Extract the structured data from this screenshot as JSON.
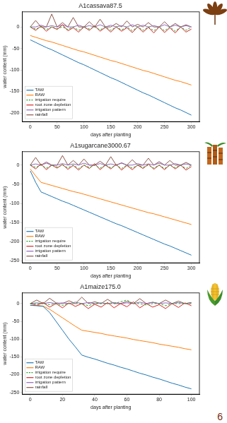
{
  "chart_data": [
    {
      "type": "line",
      "title": "A1cassava87.5",
      "x_label": "days after planting",
      "y_label": "water content (mm)",
      "x": [
        0,
        10,
        20,
        30,
        40,
        50,
        60,
        70,
        80,
        90,
        100,
        110,
        120,
        130,
        140,
        150,
        160,
        170,
        180,
        190,
        200,
        210,
        220,
        230,
        240,
        250,
        260,
        270,
        280,
        290,
        300
      ],
      "series": [
        {
          "name": "TAW",
          "color": "#1f77b4",
          "line_style": "solid",
          "values": [
            -30,
            -36,
            -42,
            -48,
            -53,
            -59,
            -65,
            -71,
            -77,
            -83,
            -88,
            -94,
            -100,
            -106,
            -112,
            -118,
            -123,
            -129,
            -135,
            -141,
            -147,
            -153,
            -158,
            -164,
            -170,
            -176,
            -182,
            -188,
            -193,
            -199,
            -205
          ]
        },
        {
          "name": "RAW",
          "color": "#ff7f0e",
          "line_style": "solid",
          "values": [
            -20,
            -24,
            -28,
            -32,
            -35,
            -39,
            -43,
            -47,
            -51,
            -55,
            -58,
            -62,
            -66,
            -70,
            -74,
            -78,
            -81,
            -85,
            -89,
            -93,
            -97,
            -101,
            -104,
            -108,
            -112,
            -116,
            -120,
            -124,
            -127,
            -131,
            -135
          ]
        },
        {
          "name": "irrigation require",
          "color": "#2ca02c",
          "line_style": "dashed",
          "values": [
            0,
            -5,
            0,
            -6,
            0,
            -4,
            0,
            -6,
            0,
            -8,
            0,
            -5,
            0,
            -7,
            0,
            -8,
            0,
            -7,
            0,
            -9,
            0,
            -8,
            0,
            -9,
            0,
            -9,
            0,
            -10,
            0,
            -8,
            0
          ]
        },
        {
          "name": "root zone depletion",
          "color": "#d62728",
          "line_style": "solid",
          "values": [
            0,
            -8,
            2,
            -10,
            0,
            -6,
            5,
            -9,
            -2,
            -12,
            0,
            -8,
            3,
            -10,
            -1,
            -12,
            0,
            -10,
            -2,
            -13,
            0,
            -12,
            -1,
            -14,
            0,
            -13,
            -2,
            -14,
            0,
            -12,
            -5
          ]
        },
        {
          "name": "irrigation pattern",
          "color": "#9467bd",
          "line_style": "solid",
          "values": [
            0,
            0,
            4,
            0,
            3,
            0,
            5,
            0,
            0,
            4,
            0,
            3,
            0,
            5,
            0,
            4,
            0,
            3,
            0,
            5,
            0,
            4,
            0,
            3,
            0,
            5,
            0,
            4,
            0,
            3,
            0
          ]
        },
        {
          "name": "rainfall",
          "color": "#8c564b",
          "line_style": "solid",
          "values": [
            0,
            15,
            0,
            0,
            30,
            0,
            10,
            0,
            22,
            0,
            0,
            12,
            0,
            18,
            0,
            0,
            8,
            0,
            14,
            0,
            6,
            0,
            10,
            0,
            0,
            12,
            0,
            8,
            0,
            5,
            0
          ]
        }
      ],
      "xlim": [
        -15,
        315
      ],
      "xticks": [
        0,
        50,
        100,
        150,
        200,
        250,
        300
      ],
      "ylim": [
        -220,
        35
      ],
      "yticks": [
        -200,
        -150,
        -100,
        -50,
        0
      ],
      "grid": false,
      "legend": "lower left"
    },
    {
      "type": "line",
      "title": "A1sugarcane3000.67",
      "x_label": "days after planting",
      "y_label": "water content (mm)",
      "x": [
        0,
        10,
        20,
        30,
        40,
        50,
        60,
        70,
        80,
        90,
        100,
        110,
        120,
        130,
        140,
        150,
        160,
        170,
        180,
        190,
        200,
        210,
        220,
        230,
        240,
        250,
        260,
        270,
        280,
        290,
        300
      ],
      "series": [
        {
          "name": "TAW",
          "color": "#1f77b4",
          "line_style": "solid",
          "values": [
            -15,
            -45,
            -70,
            -76,
            -82,
            -88,
            -94,
            -99,
            -105,
            -111,
            -117,
            -123,
            -129,
            -135,
            -141,
            -147,
            -153,
            -158,
            -164,
            -170,
            -176,
            -182,
            -188,
            -194,
            -200,
            -206,
            -211,
            -217,
            -223,
            -229,
            -235
          ]
        },
        {
          "name": "RAW",
          "color": "#ff7f0e",
          "line_style": "solid",
          "values": [
            -10,
            -28,
            -45,
            -49,
            -53,
            -57,
            -61,
            -65,
            -69,
            -72,
            -76,
            -80,
            -84,
            -88,
            -92,
            -96,
            -100,
            -104,
            -108,
            -112,
            -116,
            -120,
            -124,
            -127,
            -131,
            -135,
            -139,
            -143,
            -147,
            -151,
            -155
          ]
        },
        {
          "name": "irrigation require",
          "color": "#2ca02c",
          "line_style": "dashed",
          "values": [
            0,
            -6,
            0,
            -8,
            0,
            -5,
            0,
            -7,
            0,
            -9,
            0,
            -6,
            0,
            -8,
            0,
            -7,
            0,
            -9,
            0,
            -8,
            0,
            -6,
            0,
            -8,
            0,
            -9,
            0,
            -7,
            0,
            -9,
            0
          ]
        },
        {
          "name": "root zone depletion",
          "color": "#d62728",
          "line_style": "solid",
          "values": [
            0,
            -10,
            3,
            -12,
            0,
            -8,
            2,
            -11,
            -1,
            -13,
            0,
            -9,
            4,
            -12,
            0,
            -10,
            2,
            -13,
            -1,
            -12,
            0,
            -9,
            3,
            -11,
            0,
            -12,
            1,
            -10,
            0,
            -13,
            -4
          ]
        },
        {
          "name": "irrigation pattern",
          "color": "#9467bd",
          "line_style": "solid",
          "values": [
            0,
            3,
            0,
            5,
            0,
            0,
            4,
            0,
            3,
            0,
            5,
            0,
            0,
            4,
            0,
            3,
            0,
            5,
            0,
            0,
            4,
            0,
            3,
            0,
            5,
            0,
            0,
            4,
            0,
            3,
            0
          ]
        },
        {
          "name": "rainfall",
          "color": "#8c564b",
          "line_style": "solid",
          "values": [
            0,
            20,
            0,
            8,
            0,
            0,
            25,
            0,
            12,
            0,
            16,
            0,
            0,
            10,
            0,
            22,
            0,
            6,
            0,
            14,
            0,
            0,
            18,
            0,
            9,
            0,
            12,
            0,
            0,
            7,
            0
          ]
        }
      ],
      "xlim": [
        -15,
        315
      ],
      "xticks": [
        0,
        50,
        100,
        150,
        200,
        250,
        300
      ],
      "ylim": [
        -255,
        35
      ],
      "yticks": [
        -250,
        -200,
        -150,
        -100,
        -50,
        0
      ],
      "grid": false,
      "legend": "lower left"
    },
    {
      "type": "line",
      "title": "A1maize175.0",
      "x_label": "days after planting",
      "y_label": "water content (mm)",
      "x": [
        0,
        4,
        8,
        12,
        16,
        20,
        24,
        28,
        32,
        36,
        40,
        44,
        48,
        52,
        56,
        60,
        64,
        68,
        72,
        76,
        80,
        84,
        88,
        92,
        96,
        100
      ],
      "series": [
        {
          "name": "TAW",
          "color": "#1f77b4",
          "line_style": "solid",
          "values": [
            -5,
            -6,
            -8,
            -25,
            -50,
            -75,
            -100,
            -122,
            -145,
            -151,
            -156,
            -162,
            -168,
            -173,
            -179,
            -184,
            -190,
            -196,
            -201,
            -207,
            -212,
            -218,
            -224,
            -229,
            -235,
            -240
          ]
        },
        {
          "name": "RAW",
          "color": "#ff7f0e",
          "line_style": "solid",
          "values": [
            -5,
            -5,
            -7,
            -16,
            -28,
            -40,
            -52,
            -64,
            -75,
            -78,
            -81,
            -84,
            -88,
            -91,
            -94,
            -97,
            -101,
            -104,
            -107,
            -110,
            -114,
            -117,
            -120,
            -123,
            -127,
            -130
          ]
        },
        {
          "name": "irrigation require",
          "color": "#2ca02c",
          "line_style": "dashed",
          "values": [
            0,
            0,
            0,
            -3,
            0,
            -5,
            0,
            0,
            0,
            -6,
            0,
            0,
            0,
            0,
            5,
            10,
            0,
            0,
            -4,
            0,
            0,
            -6,
            0,
            0,
            0,
            0
          ]
        },
        {
          "name": "root zone depletion",
          "color": "#d62728",
          "line_style": "solid",
          "values": [
            0,
            -5,
            3,
            -10,
            0,
            -12,
            2,
            -8,
            0,
            -14,
            -2,
            -10,
            3,
            -12,
            0,
            -9,
            5,
            -12,
            0,
            -10,
            -3,
            -14,
            0,
            -11,
            2,
            -6
          ]
        },
        {
          "name": "irrigation pattern",
          "color": "#9467bd",
          "line_style": "solid",
          "values": [
            0,
            2,
            0,
            3,
            0,
            2,
            0,
            4,
            0,
            3,
            0,
            2,
            0,
            3,
            0,
            2,
            0,
            4,
            0,
            3,
            0,
            2,
            0,
            3,
            0,
            2
          ]
        },
        {
          "name": "rainfall",
          "color": "#8c564b",
          "line_style": "solid",
          "values": [
            0,
            10,
            0,
            15,
            2,
            0,
            8,
            0,
            18,
            0,
            5,
            0,
            12,
            0,
            0,
            6,
            0,
            14,
            0,
            4,
            0,
            10,
            0,
            7,
            0,
            3
          ]
        }
      ],
      "xlim": [
        -5,
        105
      ],
      "xticks": [
        0,
        20,
        40,
        60,
        80,
        100
      ],
      "ylim": [
        -255,
        30
      ],
      "yticks": [
        -250,
        -200,
        -150,
        -100,
        -50,
        0
      ],
      "grid": false,
      "legend": "lower left"
    }
  ],
  "page_number": "6"
}
